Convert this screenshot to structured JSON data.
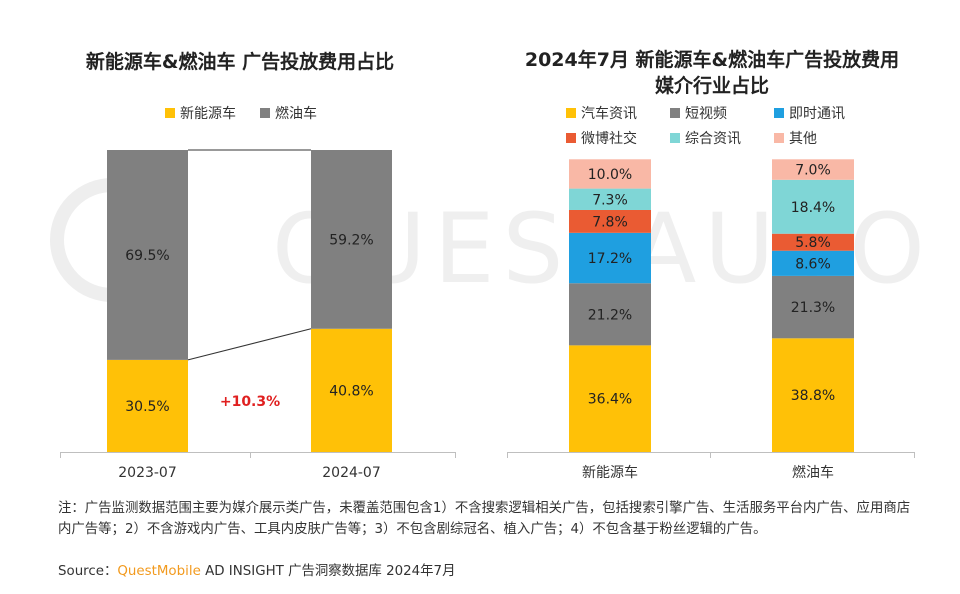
{
  "chart_data": [
    {
      "type": "bar",
      "stacked": true,
      "percent": true,
      "title": "新能源车&燃油车 广告投放费用占比",
      "categories": [
        "2023-07",
        "2024-07"
      ],
      "series": [
        {
          "name": "新能源车",
          "color": "#ffc107",
          "values": [
            30.5,
            40.8
          ],
          "labels": [
            "30.5%",
            "40.8%"
          ]
        },
        {
          "name": "燃油车",
          "color": "#808080",
          "values": [
            69.5,
            59.2
          ],
          "labels": [
            "69.5%",
            "59.2%"
          ]
        }
      ],
      "annotation": "+10.3%",
      "ylim": [
        0,
        100
      ],
      "legend": "top"
    },
    {
      "type": "bar",
      "stacked": true,
      "percent": true,
      "title": "2024年7月 新能源车&燃油车广告投放费用媒介行业占比",
      "categories": [
        "新能源车",
        "燃油车"
      ],
      "series": [
        {
          "name": "汽车资讯",
          "color": "#ffc107",
          "values": [
            36.4,
            38.8
          ],
          "labels": [
            "36.4%",
            "38.8%"
          ]
        },
        {
          "name": "短视频",
          "color": "#808080",
          "values": [
            21.2,
            21.3
          ],
          "labels": [
            "21.2%",
            "21.3%"
          ]
        },
        {
          "name": "即时通讯",
          "color": "#1f9fe0",
          "values": [
            17.2,
            8.6
          ],
          "labels": [
            "17.2%",
            "8.6%"
          ]
        },
        {
          "name": "微博社交",
          "color": "#ea5b33",
          "values": [
            7.8,
            5.8
          ],
          "labels": [
            "7.8%",
            "5.8%"
          ]
        },
        {
          "name": "综合资讯",
          "color": "#7fd6d6",
          "values": [
            7.3,
            18.4
          ],
          "labels": [
            "7.3%",
            "18.4%"
          ]
        },
        {
          "name": "其他",
          "color": "#f9b8a6",
          "values": [
            10.0,
            7.0
          ],
          "labels": [
            "10.0%",
            "7.0%"
          ]
        }
      ],
      "ylim": [
        0,
        100
      ],
      "legend": "top"
    }
  ],
  "footer": {
    "note": "注：广告监测数据范围主要为媒介展示类广告，未覆盖范围包含1）不含搜索逻辑相关广告，包括搜索引擎广告、生活服务平台内广告、应用商店内广告等；2）不含游戏内广告、工具内皮肤广告等；3）不包含剧综冠名、植入广告；4）不包含基于粉丝逻辑的广告。",
    "source_label": "Source：",
    "source_brand": "QuestMobile",
    "source_rest": " AD INSIGHT 广告洞察数据库 2024年7月"
  },
  "watermark": "QUESTAUTO",
  "colors": {
    "annotation": "#e02020",
    "axis": "#bfbfbf",
    "text": "#333333"
  }
}
